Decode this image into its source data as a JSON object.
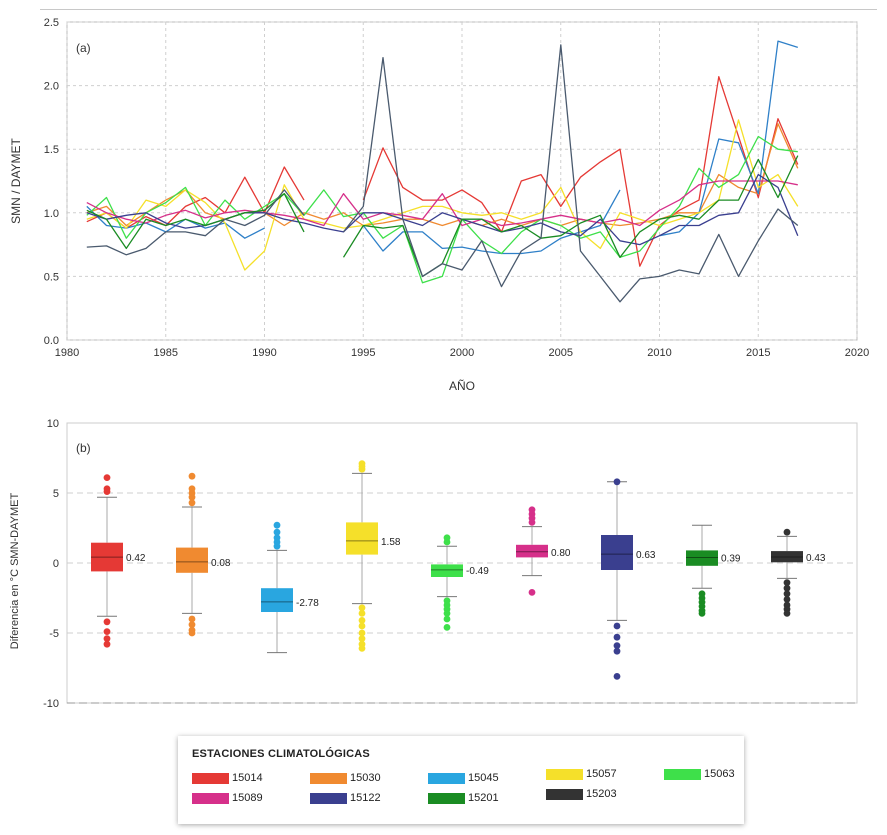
{
  "chart_data": [
    {
      "type": "line",
      "panel_label": "(a)",
      "xlabel": "AÑO",
      "ylabel": "SMN / DAYMET",
      "xlim": [
        1980,
        2020
      ],
      "ylim": [
        0,
        2.5
      ],
      "xticks": [
        "1980",
        "1985",
        "1990",
        "1995",
        "2000",
        "2005",
        "2010",
        "2015",
        "2020"
      ],
      "yticks": [
        "0.0",
        "0.5",
        "1.0",
        "1.5",
        "2.0",
        "2.5"
      ],
      "grid": true,
      "series": [
        {
          "name": "15014",
          "color": "#e53935",
          "x": [
            1981,
            1982,
            1983,
            1984,
            1985,
            1986,
            1987,
            1988,
            1989,
            1990,
            1991,
            1992,
            1993,
            1994,
            1995,
            1996,
            1997,
            1998,
            1999,
            2000,
            2001,
            2002,
            2003,
            2004,
            2005,
            2006,
            2007,
            2008,
            2009,
            2010,
            2011,
            2012,
            2013,
            2014,
            2015,
            2016,
            2017
          ],
          "y": [
            0.93,
            1.0,
            0.88,
            0.97,
            0.9,
            1.05,
            1.12,
            1.0,
            1.28,
            1.0,
            1.36,
            1.1,
            null,
            null,
            1.1,
            1.51,
            1.2,
            1.1,
            1.1,
            1.18,
            1.08,
            0.85,
            1.25,
            1.3,
            1.05,
            1.28,
            1.4,
            1.5,
            0.58,
            0.9,
            1.02,
            1.1,
            2.07,
            1.6,
            1.12,
            1.74,
            1.38
          ]
        },
        {
          "name": "15030",
          "color": "#f08a30",
          "x": [
            1981,
            1982,
            1983,
            1984,
            1985,
            1986,
            1987,
            1988,
            1989,
            1990,
            1991,
            1992,
            1993,
            1994,
            1995,
            1996,
            1997,
            1998,
            1999,
            2000,
            2001,
            2002,
            2003,
            2004,
            2005,
            2006,
            2007,
            2008,
            2009,
            2010,
            2011,
            2012,
            2013,
            2014,
            2015,
            2016,
            2017
          ],
          "y": [
            1.0,
            1.05,
            0.9,
            1.0,
            1.1,
            1.18,
            1.0,
            0.95,
            1.0,
            1.0,
            0.9,
            1.0,
            0.95,
            1.0,
            0.9,
            0.92,
            0.95,
            0.95,
            0.9,
            0.95,
            0.9,
            0.95,
            0.9,
            0.95,
            0.9,
            0.95,
            0.92,
            0.9,
            0.92,
            0.95,
            1.0,
            1.0,
            1.3,
            1.2,
            1.15,
            1.7,
            1.35
          ]
        },
        {
          "name": "15045",
          "color": "#2f80c8",
          "x": [
            1981,
            1982,
            1983,
            1984,
            1985,
            1986,
            1987,
            1988,
            1989,
            1990,
            1991,
            1992,
            1993,
            1994,
            1995,
            1996,
            1997,
            1998,
            1999,
            2000,
            2001,
            2002,
            2003,
            2004,
            2005,
            2006,
            2007,
            2008,
            2009,
            2010,
            2011,
            2012,
            2013,
            2014,
            2015,
            2016,
            2017
          ],
          "y": [
            1.05,
            0.9,
            0.88,
            0.92,
            0.85,
            0.95,
            0.88,
            0.92,
            0.8,
            0.88,
            null,
            null,
            null,
            null,
            0.9,
            0.7,
            0.85,
            0.85,
            0.72,
            0.73,
            0.7,
            0.68,
            0.68,
            0.7,
            0.8,
            0.85,
            0.9,
            1.18,
            null,
            0.82,
            0.85,
            1.0,
            1.58,
            1.55,
            1.15,
            2.35,
            2.3
          ]
        },
        {
          "name": "15057",
          "color": "#f5e02a",
          "x": [
            1981,
            1982,
            1983,
            1984,
            1985,
            1986,
            1987,
            1988,
            1989,
            1990,
            1991,
            1992,
            1993,
            1994,
            1995,
            1996,
            1997,
            1998,
            1999,
            2000,
            2001,
            2002,
            2003,
            2004,
            2005,
            2006,
            2007,
            2008,
            2009,
            2010,
            2011,
            2012,
            2013,
            2014,
            2015,
            2016,
            2017
          ],
          "y": [
            0.95,
            1.0,
            0.88,
            1.1,
            1.05,
            1.18,
            1.08,
            0.92,
            0.55,
            0.7,
            1.22,
            0.95,
            0.92,
            0.88,
            0.9,
            0.95,
            1.0,
            1.05,
            1.05,
            1.0,
            0.98,
            1.0,
            0.95,
            1.0,
            1.2,
            0.85,
            0.72,
            1.0,
            0.95,
            0.9,
            0.95,
            1.0,
            1.1,
            1.73,
            1.2,
            1.3,
            1.05
          ]
        },
        {
          "name": "15063",
          "color": "#3ee04a",
          "x": [
            1981,
            1982,
            1983,
            1984,
            1985,
            1986,
            1987,
            1988,
            1989,
            1990,
            1991,
            1992,
            1993,
            1994,
            1995,
            1996,
            1997,
            1998,
            1999,
            2000,
            2001,
            2002,
            2003,
            2004,
            2005,
            2006,
            2007,
            2008,
            2009,
            2010,
            2011,
            2012,
            2013,
            2014,
            2015,
            2016,
            2017
          ],
          "y": [
            0.98,
            1.12,
            0.8,
            1.0,
            1.08,
            1.2,
            0.9,
            1.1,
            0.95,
            1.05,
            1.15,
            0.98,
            1.18,
            0.97,
            1.0,
            0.8,
            0.9,
            0.45,
            0.5,
            0.95,
            0.78,
            0.68,
            0.85,
            0.95,
            0.9,
            0.8,
            0.85,
            0.65,
            0.7,
            0.88,
            1.05,
            1.35,
            1.2,
            1.3,
            1.6,
            1.5,
            1.48
          ]
        },
        {
          "name": "15089",
          "color": "#d6308a",
          "x": [
            1981,
            1982,
            1983,
            1984,
            1985,
            1986,
            1987,
            1988,
            1989,
            1990,
            1991,
            1992,
            1993,
            1994,
            1995,
            1996,
            1997,
            1998,
            1999,
            2000,
            2001,
            2002,
            2003,
            2004,
            2005,
            2006,
            2007,
            2008,
            2009,
            2010,
            2011,
            2012,
            2013,
            2014,
            2015,
            2016,
            2017
          ],
          "y": [
            1.08,
            1.0,
            0.95,
            0.92,
            0.98,
            1.02,
            0.96,
            1.0,
            1.02,
            1.0,
            0.98,
            0.95,
            0.9,
            1.15,
            0.95,
            1.0,
            0.98,
            0.95,
            1.15,
            0.9,
            0.95,
            0.9,
            0.92,
            0.95,
            0.98,
            0.95,
            0.92,
            0.95,
            0.9,
            1.02,
            1.1,
            1.22,
            1.25,
            1.25,
            1.25,
            1.25,
            1.22
          ]
        },
        {
          "name": "15122",
          "color": "#3a3f8f",
          "x": [
            1981,
            1982,
            1983,
            1984,
            1985,
            1986,
            1987,
            1988,
            1989,
            1990,
            1991,
            1992,
            1993,
            1994,
            1995,
            1996,
            1997,
            1998,
            1999,
            2000,
            2001,
            2002,
            2003,
            2004,
            2005,
            2006,
            2007,
            2008,
            2009,
            2010,
            2011,
            2012,
            2013,
            2014,
            2015,
            2016,
            2017
          ],
          "y": [
            1.0,
            0.95,
            0.98,
            1.0,
            0.92,
            0.88,
            0.9,
            0.95,
            1.0,
            1.0,
            0.95,
            0.92,
            0.88,
            0.85,
            1.0,
            1.0,
            0.95,
            0.9,
            1.0,
            0.95,
            0.9,
            0.85,
            0.88,
            0.92,
            0.85,
            0.82,
            0.95,
            0.78,
            0.75,
            0.82,
            0.9,
            0.9,
            0.98,
            1.0,
            1.3,
            1.2,
            0.82
          ]
        },
        {
          "name": "15201",
          "color": "#1a8c23",
          "x": [
            1981,
            1982,
            1983,
            1984,
            1985,
            1986,
            1987,
            1988,
            1989,
            1990,
            1991,
            1992,
            1993,
            1994,
            1995,
            1996,
            1997,
            1998,
            1999,
            2000,
            2001,
            2002,
            2003,
            2004,
            2005,
            2006,
            2007,
            2008,
            2009,
            2010,
            2011,
            2012,
            2013,
            2014,
            2015,
            2016,
            2017
          ],
          "y": [
            1.02,
            0.95,
            0.72,
            0.95,
            0.9,
            0.95,
            0.9,
            0.95,
            1.0,
            1.02,
            1.15,
            0.85,
            null,
            0.65,
            0.9,
            0.88,
            0.9,
            0.5,
            0.6,
            0.95,
            0.95,
            0.85,
            0.9,
            0.8,
            0.82,
            0.92,
            0.98,
            0.65,
            0.85,
            0.95,
            0.98,
            0.95,
            1.1,
            1.1,
            1.42,
            1.12,
            1.45
          ]
        },
        {
          "name": "15203",
          "color": "#4a5a6e",
          "x": [
            1981,
            1982,
            1983,
            1984,
            1985,
            1986,
            1987,
            1988,
            1989,
            1990,
            1991,
            1992,
            1993,
            1994,
            1995,
            1996,
            1997,
            1998,
            1999,
            2000,
            2001,
            2002,
            2003,
            2004,
            2005,
            2006,
            2007,
            2008,
            2009,
            2010,
            2011,
            2012,
            2013,
            2014,
            2015,
            2016,
            2017
          ],
          "y": [
            0.73,
            0.74,
            0.67,
            0.72,
            0.85,
            0.85,
            0.82,
            0.95,
            0.9,
            0.98,
            1.18,
            0.98,
            null,
            0.85,
            1.05,
            2.22,
            0.95,
            0.5,
            0.6,
            0.55,
            0.78,
            0.42,
            0.7,
            0.8,
            2.32,
            0.7,
            0.5,
            0.3,
            0.48,
            0.5,
            0.55,
            0.52,
            0.83,
            0.5,
            0.78,
            1.03,
            0.9
          ]
        }
      ]
    },
    {
      "type": "box",
      "panel_label": "(b)",
      "xlabel": "",
      "ylabel": "Diferencia en °C SMN-DAYMET",
      "ylim": [
        -10,
        10
      ],
      "yticks": [
        "-10",
        "-5",
        "0",
        "5",
        "10"
      ],
      "grid": "dashed",
      "boxes": [
        {
          "station": "15014",
          "color": "#e53935",
          "median": 0.42,
          "label": "0.42",
          "q1": -0.6,
          "q3": 1.45,
          "whisker_low": -3.8,
          "whisker_high": 4.7,
          "outliers": [
            6.1,
            5.3,
            5.1,
            -4.2,
            -4.9,
            -5.4,
            -5.8
          ]
        },
        {
          "station": "15030",
          "color": "#f08a30",
          "median": 0.08,
          "label": "0.08",
          "q1": -0.7,
          "q3": 1.1,
          "whisker_low": -3.6,
          "whisker_high": 4.0,
          "outliers": [
            6.2,
            5.3,
            5.0,
            4.7,
            4.3,
            -4.0,
            -4.4,
            -4.8,
            -5.0
          ]
        },
        {
          "station": "15045",
          "color": "#29a6e0",
          "median": -2.78,
          "label": "-2.78",
          "q1": -3.5,
          "q3": -1.8,
          "whisker_low": -6.4,
          "whisker_high": 0.9,
          "outliers": [
            2.7,
            2.2,
            1.8,
            1.5,
            1.2
          ]
        },
        {
          "station": "15057",
          "color": "#f5e02a",
          "median": 1.58,
          "label": "1.58",
          "q1": 0.6,
          "q3": 2.9,
          "whisker_low": -2.9,
          "whisker_high": 6.4,
          "outliers": [
            7.1,
            6.9,
            6.7,
            -3.2,
            -3.6,
            -4.1,
            -4.5,
            -5.0,
            -5.4,
            -5.8,
            -6.1
          ]
        },
        {
          "station": "15063",
          "color": "#3ee04a",
          "median": -0.49,
          "label": "-0.49",
          "q1": -1.0,
          "q3": -0.1,
          "whisker_low": -2.4,
          "whisker_high": 1.2,
          "outliers": [
            1.8,
            1.5,
            -2.7,
            -3.0,
            -3.3,
            -3.6,
            -4.0,
            -4.6
          ]
        },
        {
          "station": "15089",
          "color": "#d6308a",
          "median": 0.8,
          "label": "0.80",
          "q1": 0.4,
          "q3": 1.3,
          "whisker_low": -0.9,
          "whisker_high": 2.6,
          "outliers": [
            3.8,
            3.5,
            3.2,
            2.9,
            -2.1
          ]
        },
        {
          "station": "15122",
          "color": "#3a3f8f",
          "median": 0.63,
          "label": "0.63",
          "q1": -0.5,
          "q3": 2.0,
          "whisker_low": -4.1,
          "whisker_high": 5.8,
          "outliers": [
            5.8,
            -4.5,
            -5.3,
            -5.9,
            -6.3,
            -8.1
          ]
        },
        {
          "station": "15201",
          "color": "#1a8c23",
          "median": 0.39,
          "label": "0.39",
          "q1": -0.2,
          "q3": 0.9,
          "whisker_low": -1.8,
          "whisker_high": 2.7,
          "outliers": [
            -2.2,
            -2.5,
            -2.8,
            -3.1,
            -3.4,
            -3.6
          ]
        },
        {
          "station": "15203",
          "color": "#333333",
          "median": 0.43,
          "label": "0.43",
          "q1": 0.05,
          "q3": 0.85,
          "whisker_low": -1.1,
          "whisker_high": 1.9,
          "outliers": [
            2.2,
            -1.4,
            -1.8,
            -2.2,
            -2.6,
            -3.0,
            -3.3,
            -3.6
          ]
        }
      ]
    }
  ],
  "legend": {
    "title": "ESTACIONES CLIMATOLÓGICAS",
    "items": [
      {
        "label": "15014",
        "color": "#e53935"
      },
      {
        "label": "15030",
        "color": "#f08a30"
      },
      {
        "label": "15045",
        "color": "#29a6e0"
      },
      {
        "label": "15057",
        "color": "#f5e02a"
      },
      {
        "label": "15063",
        "color": "#3ee04a"
      },
      {
        "label": "15089",
        "color": "#d6308a"
      },
      {
        "label": "15122",
        "color": "#3a3f8f"
      },
      {
        "label": "15201",
        "color": "#1a8c23"
      },
      {
        "label": "15203",
        "color": "#333333"
      }
    ]
  }
}
